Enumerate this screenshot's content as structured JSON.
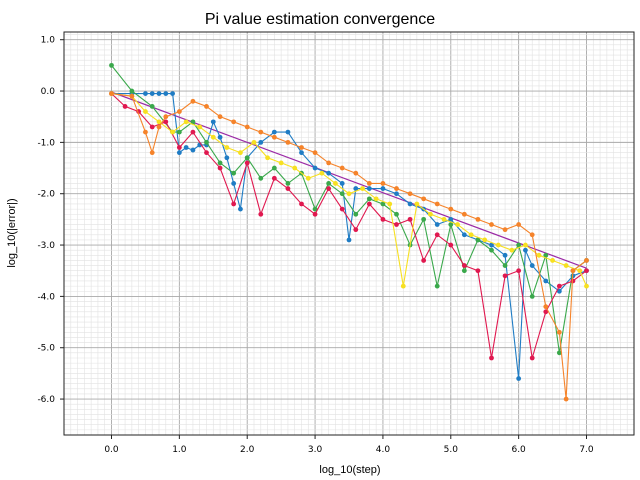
{
  "chart_data": {
    "type": "line",
    "title": "Pi value estimation convergence",
    "xlabel": "log_10(step)",
    "ylabel": "log_10(|error|)",
    "xlim": [
      -0.7,
      7.7
    ],
    "ylim": [
      -6.7,
      1.15
    ],
    "xticks": [
      0.0,
      1.0,
      2.0,
      3.0,
      4.0,
      5.0,
      6.0,
      7.0
    ],
    "xtick_labels": [
      "0.0",
      "1.0",
      "2.0",
      "3.0",
      "4.0",
      "5.0",
      "6.0",
      "7.0"
    ],
    "yticks": [
      1.0,
      0.0,
      -1.0,
      -2.0,
      -3.0,
      -4.0,
      -5.0,
      -6.0
    ],
    "ytick_labels": [
      "1.0",
      "0.0",
      "-1.0",
      "-2.0",
      "-3.0",
      "-4.0",
      "-5.0",
      "-6.0"
    ],
    "grid": "major and minor",
    "colors": {
      "blue": "#1f7cc4",
      "green": "#3aa84b",
      "red": "#e0184f",
      "yellow": "#f7e020",
      "orange": "#f5832a",
      "fit_line": "#9b2aa6"
    },
    "series": [
      {
        "color": "#1f7cc4",
        "x": [
          0.0,
          0.3,
          0.5,
          0.6,
          0.7,
          0.8,
          0.9,
          1.0,
          1.1,
          1.2,
          1.3,
          1.4,
          1.5,
          1.6,
          1.7,
          1.8,
          1.9,
          2.0,
          2.2,
          2.4,
          2.6,
          2.8,
          3.0,
          3.2,
          3.4,
          3.5,
          3.6,
          3.8,
          4.0,
          4.2,
          4.4,
          4.6,
          4.8,
          5.0,
          5.2,
          5.4,
          5.6,
          5.8,
          6.0,
          6.1,
          6.2,
          6.4,
          6.6,
          6.8,
          7.0
        ],
        "y": [
          -0.05,
          -0.05,
          -0.05,
          -0.05,
          -0.05,
          -0.05,
          -0.05,
          -1.2,
          -1.1,
          -1.15,
          -1.05,
          -1.05,
          -0.6,
          -0.9,
          -1.3,
          -1.8,
          -2.3,
          -1.3,
          -1.0,
          -0.8,
          -0.8,
          -1.2,
          -1.5,
          -1.6,
          -1.8,
          -2.9,
          -1.9,
          -1.9,
          -1.9,
          -2.0,
          -2.2,
          -2.3,
          -2.6,
          -2.5,
          -2.8,
          -2.9,
          -3.0,
          -3.2,
          -5.6,
          -3.1,
          -3.4,
          -3.7,
          -3.9,
          -3.6,
          -3.5
        ]
      },
      {
        "color": "#3aa84b",
        "x": [
          0.0,
          0.3,
          0.6,
          0.9,
          1.0,
          1.2,
          1.4,
          1.6,
          1.8,
          2.0,
          2.2,
          2.4,
          2.6,
          2.8,
          3.0,
          3.2,
          3.4,
          3.6,
          3.8,
          4.0,
          4.2,
          4.4,
          4.6,
          4.8,
          5.0,
          5.2,
          5.4,
          5.6,
          5.8,
          6.0,
          6.2,
          6.4,
          6.6,
          6.8,
          7.0
        ],
        "y": [
          0.5,
          0.0,
          -0.3,
          -0.8,
          -0.8,
          -0.6,
          -1.0,
          -1.4,
          -1.6,
          -1.3,
          -1.7,
          -1.5,
          -1.8,
          -1.6,
          -2.3,
          -1.8,
          -2.0,
          -2.4,
          -2.1,
          -2.2,
          -2.4,
          -3.0,
          -2.5,
          -3.8,
          -2.6,
          -3.5,
          -2.9,
          -3.1,
          -3.4,
          -3.0,
          -4.0,
          -3.2,
          -5.1,
          -3.5,
          -3.3
        ]
      },
      {
        "color": "#e0184f",
        "x": [
          0.0,
          0.2,
          0.4,
          0.6,
          0.8,
          1.0,
          1.2,
          1.4,
          1.6,
          1.8,
          2.0,
          2.2,
          2.4,
          2.6,
          2.8,
          3.0,
          3.2,
          3.4,
          3.6,
          3.8,
          4.0,
          4.2,
          4.4,
          4.6,
          4.8,
          5.0,
          5.2,
          5.4,
          5.6,
          5.8,
          6.0,
          6.2,
          6.4,
          6.6,
          6.8,
          7.0
        ],
        "y": [
          -0.05,
          -0.3,
          -0.4,
          -0.7,
          -0.6,
          -1.1,
          -0.8,
          -1.2,
          -1.5,
          -2.2,
          -1.4,
          -2.4,
          -1.7,
          -1.9,
          -2.2,
          -2.4,
          -1.9,
          -2.3,
          -2.7,
          -2.2,
          -2.5,
          -2.6,
          -2.5,
          -3.3,
          -2.8,
          -3.0,
          -3.4,
          -3.5,
          -5.2,
          -3.6,
          -3.5,
          -5.2,
          -4.3,
          -3.8,
          -3.7,
          -3.5
        ]
      },
      {
        "color": "#f7e020",
        "x": [
          0.0,
          0.3,
          0.5,
          0.7,
          0.9,
          1.1,
          1.3,
          1.5,
          1.7,
          1.9,
          2.1,
          2.3,
          2.5,
          2.7,
          2.9,
          3.1,
          3.3,
          3.5,
          3.7,
          3.9,
          4.1,
          4.3,
          4.5,
          4.7,
          4.9,
          5.1,
          5.3,
          5.5,
          5.7,
          5.9,
          6.1,
          6.3,
          6.5,
          6.7,
          6.9,
          7.0
        ],
        "y": [
          -0.05,
          -0.1,
          -0.4,
          -0.6,
          -0.8,
          -0.6,
          -0.7,
          -0.9,
          -1.1,
          -1.2,
          -1.0,
          -1.3,
          -1.4,
          -1.5,
          -1.7,
          -1.6,
          -1.8,
          -2.0,
          -1.9,
          -2.1,
          -2.2,
          -3.8,
          -2.2,
          -2.4,
          -2.5,
          -2.6,
          -2.8,
          -2.9,
          -3.0,
          -3.1,
          -3.0,
          -3.2,
          -3.3,
          -3.4,
          -3.5,
          -3.8
        ]
      },
      {
        "color": "#f5832a",
        "x": [
          0.0,
          0.3,
          0.5,
          0.6,
          0.7,
          0.8,
          1.0,
          1.2,
          1.4,
          1.6,
          1.8,
          2.0,
          2.2,
          2.4,
          2.6,
          2.8,
          3.0,
          3.2,
          3.4,
          3.6,
          3.8,
          4.0,
          4.2,
          4.4,
          4.6,
          4.8,
          5.0,
          5.2,
          5.4,
          5.6,
          5.8,
          6.0,
          6.2,
          6.4,
          6.6,
          6.7,
          6.8,
          7.0
        ],
        "y": [
          -0.05,
          -0.1,
          -0.8,
          -1.2,
          -0.7,
          -0.5,
          -0.4,
          -0.2,
          -0.3,
          -0.5,
          -0.6,
          -0.7,
          -0.8,
          -0.9,
          -1.0,
          -1.1,
          -1.2,
          -1.4,
          -1.5,
          -1.6,
          -1.8,
          -1.8,
          -1.9,
          -2.0,
          -2.1,
          -2.2,
          -2.3,
          -2.4,
          -2.5,
          -2.6,
          -2.7,
          -2.6,
          -2.8,
          -4.2,
          -4.7,
          -6.0,
          -3.5,
          -3.3
        ]
      }
    ],
    "fit_line": {
      "color": "#9b2aa6",
      "x": [
        0.0,
        7.0
      ],
      "y": [
        -0.02,
        -3.45
      ]
    }
  }
}
